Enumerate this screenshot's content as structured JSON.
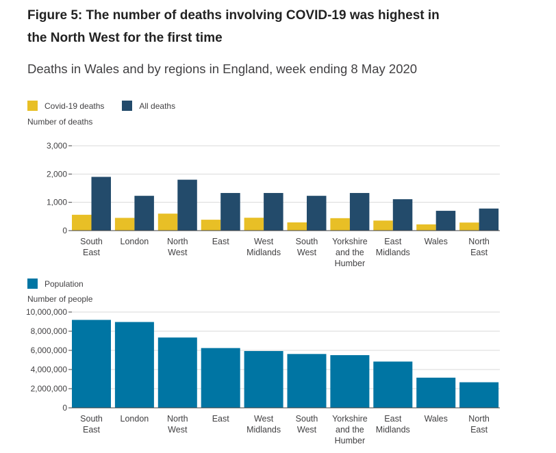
{
  "figure": {
    "title": "Figure 5: The number of deaths involving COVID-19 was highest in the North West for the first time",
    "subtitle": "Deaths in Wales and by regions in England, week ending 8 May 2020"
  },
  "colors": {
    "covid": "#e8bf26",
    "all": "#234b6b",
    "population": "#0075a3",
    "grid": "#d9d9d9",
    "axis": "#414042"
  },
  "chart_data": [
    {
      "type": "bar",
      "ylabel": "Number of deaths",
      "ylim": [
        0,
        3000
      ],
      "yticks": [
        "0",
        "1,000",
        "2,000",
        "3,000"
      ],
      "legend_position": "top-left",
      "categories": [
        [
          "South",
          "East"
        ],
        [
          "London"
        ],
        [
          "North",
          "West"
        ],
        [
          "East"
        ],
        [
          "West",
          "Midlands"
        ],
        [
          "South",
          "West"
        ],
        [
          "Yorkshire",
          "and the",
          "Humber"
        ],
        [
          "East",
          "Midlands"
        ],
        [
          "Wales"
        ],
        [
          "North",
          "East"
        ]
      ],
      "series": [
        {
          "name": "Covid-19 deaths",
          "color": "#e8bf26",
          "values": [
            560,
            450,
            600,
            385,
            455,
            290,
            440,
            355,
            220,
            285
          ]
        },
        {
          "name": "All deaths",
          "color": "#234b6b",
          "values": [
            1900,
            1230,
            1800,
            1330,
            1330,
            1230,
            1330,
            1110,
            700,
            780
          ]
        }
      ]
    },
    {
      "type": "bar",
      "ylabel": "Number of people",
      "ylim": [
        0,
        10000000
      ],
      "yticks": [
        "0",
        "2,000,000",
        "4,000,000",
        "6,000,000",
        "8,000,000",
        "10,000,000"
      ],
      "legend_position": "top-left",
      "categories": [
        [
          "South",
          "East"
        ],
        [
          "London"
        ],
        [
          "North",
          "West"
        ],
        [
          "East"
        ],
        [
          "West",
          "Midlands"
        ],
        [
          "South",
          "West"
        ],
        [
          "Yorkshire",
          "and the",
          "Humber"
        ],
        [
          "East",
          "Midlands"
        ],
        [
          "Wales"
        ],
        [
          "North",
          "East"
        ]
      ],
      "series": [
        {
          "name": "Population",
          "color": "#0075a3",
          "values": [
            9180000,
            8960000,
            7340000,
            6240000,
            5930000,
            5620000,
            5500000,
            4830000,
            3150000,
            2670000
          ]
        }
      ]
    }
  ]
}
